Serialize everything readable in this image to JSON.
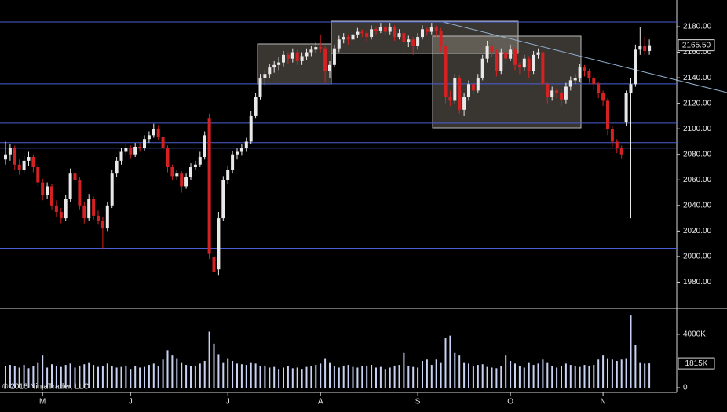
{
  "chart_data": [
    {
      "type": "candlestick",
      "up_color": "#e8e8e8",
      "down_color": "#d42222",
      "level_color": "#4a5fd6",
      "ylim": [
        1960,
        2196
      ],
      "yticks": [
        {
          "value": 1980,
          "label": "1980.00"
        },
        {
          "value": 2000,
          "label": "2000.00"
        },
        {
          "value": 2020,
          "label": "2020.00"
        },
        {
          "value": 2040,
          "label": "2040.00"
        },
        {
          "value": 2060,
          "label": "2060.00"
        },
        {
          "value": 2080,
          "label": "2080.00"
        },
        {
          "value": 2100,
          "label": "2100.00"
        },
        {
          "value": 2120,
          "label": "2120.00"
        },
        {
          "value": 2140,
          "label": "2140.00"
        },
        {
          "value": 2160,
          "label": "2160.00"
        },
        {
          "value": 2180,
          "label": "2180.00"
        }
      ],
      "levels": [
        2183.7,
        2135.2,
        2104.5,
        2089.2,
        2084.9,
        2006.4
      ],
      "last_value": 2165.5,
      "last_value_label": "2165.50",
      "ohlc": [
        [
          2076,
          2090,
          2072,
          2080
        ],
        [
          2080,
          2088,
          2075,
          2085
        ],
        [
          2085,
          2087,
          2068,
          2072
        ],
        [
          2072,
          2076,
          2064,
          2068
        ],
        [
          2068,
          2079,
          2065,
          2075
        ],
        [
          2075,
          2082,
          2071,
          2078
        ],
        [
          2078,
          2080,
          2066,
          2070
        ],
        [
          2070,
          2072,
          2055,
          2058
        ],
        [
          2058,
          2061,
          2044,
          2048
        ],
        [
          2048,
          2058,
          2045,
          2055
        ],
        [
          2055,
          2057,
          2037,
          2040
        ],
        [
          2040,
          2044,
          2031,
          2035
        ],
        [
          2035,
          2038,
          2026,
          2030
        ],
        [
          2030,
          2048,
          2028,
          2045
        ],
        [
          2045,
          2069,
          2043,
          2065
        ],
        [
          2065,
          2068,
          2056,
          2060
        ],
        [
          2060,
          2062,
          2037,
          2040
        ],
        [
          2040,
          2043,
          2026,
          2030
        ],
        [
          2030,
          2049,
          2028,
          2045
        ],
        [
          2045,
          2047,
          2029,
          2032
        ],
        [
          2032,
          2036,
          2025,
          2028
        ],
        [
          2028,
          2031,
          2006,
          2022
        ],
        [
          2022,
          2043,
          2020,
          2040
        ],
        [
          2040,
          2068,
          2038,
          2065
        ],
        [
          2065,
          2078,
          2062,
          2075
        ],
        [
          2075,
          2085,
          2072,
          2082
        ],
        [
          2082,
          2088,
          2079,
          2085
        ],
        [
          2085,
          2087,
          2077,
          2080
        ],
        [
          2080,
          2089,
          2078,
          2086
        ],
        [
          2086,
          2089,
          2082,
          2085
        ],
        [
          2085,
          2095,
          2083,
          2092
        ],
        [
          2092,
          2098,
          2089,
          2095
        ],
        [
          2095,
          2104,
          2093,
          2100
        ],
        [
          2100,
          2103,
          2091,
          2094
        ],
        [
          2094,
          2096,
          2082,
          2085
        ],
        [
          2085,
          2087,
          2066,
          2070
        ],
        [
          2070,
          2072,
          2060,
          2063
        ],
        [
          2063,
          2068,
          2060,
          2065
        ],
        [
          2065,
          2067,
          2050,
          2055
        ],
        [
          2055,
          2065,
          2053,
          2062
        ],
        [
          2062,
          2073,
          2060,
          2070
        ],
        [
          2070,
          2075,
          2068,
          2072
        ],
        [
          2072,
          2082,
          2070,
          2078
        ],
        [
          2078,
          2098,
          2076,
          2095
        ],
        [
          2108,
          2112,
          1998,
          2002
        ],
        [
          2000,
          2010,
          1982,
          1988
        ],
        [
          1990,
          2035,
          1985,
          2030
        ],
        [
          2030,
          2063,
          2028,
          2060
        ],
        [
          2060,
          2071,
          2057,
          2068
        ],
        [
          2068,
          2083,
          2065,
          2080
        ],
        [
          2080,
          2085,
          2076,
          2082
        ],
        [
          2082,
          2088,
          2079,
          2085
        ],
        [
          2085,
          2093,
          2082,
          2090
        ],
        [
          2090,
          2114,
          2088,
          2110
        ],
        [
          2110,
          2128,
          2108,
          2125
        ],
        [
          2125,
          2143,
          2123,
          2140
        ],
        [
          2140,
          2146,
          2134,
          2143
        ],
        [
          2143,
          2151,
          2140,
          2148
        ],
        [
          2148,
          2153,
          2144,
          2150
        ],
        [
          2150,
          2156,
          2146,
          2152
        ],
        [
          2152,
          2161,
          2149,
          2158
        ],
        [
          2158,
          2160,
          2151,
          2155
        ],
        [
          2155,
          2163,
          2152,
          2160
        ],
        [
          2160,
          2162,
          2150,
          2153
        ],
        [
          2153,
          2160,
          2150,
          2157
        ],
        [
          2157,
          2163,
          2154,
          2160
        ],
        [
          2160,
          2165,
          2157,
          2162
        ],
        [
          2162,
          2168,
          2159,
          2164
        ],
        [
          2164,
          2174,
          2160,
          2163
        ],
        [
          2163,
          2165,
          2136,
          2145
        ],
        [
          2145,
          2153,
          2140,
          2150
        ],
        [
          2150,
          2166,
          2148,
          2163
        ],
        [
          2163,
          2173,
          2160,
          2170
        ],
        [
          2170,
          2175,
          2167,
          2172
        ],
        [
          2172,
          2174,
          2166,
          2170
        ],
        [
          2170,
          2177,
          2168,
          2174
        ],
        [
          2174,
          2179,
          2171,
          2176
        ],
        [
          2176,
          2178,
          2172,
          2175
        ],
        [
          2175,
          2177,
          2168,
          2172
        ],
        [
          2172,
          2181,
          2170,
          2178
        ],
        [
          2178,
          2180,
          2174,
          2177
        ],
        [
          2177,
          2183,
          2175,
          2180
        ],
        [
          2180,
          2182,
          2173,
          2176
        ],
        [
          2176,
          2183,
          2174,
          2180
        ],
        [
          2180,
          2181,
          2169,
          2172
        ],
        [
          2172,
          2178,
          2170,
          2175
        ],
        [
          2175,
          2177,
          2160,
          2168
        ],
        [
          2168,
          2173,
          2164,
          2170
        ],
        [
          2170,
          2172,
          2158,
          2165
        ],
        [
          2165,
          2175,
          2162,
          2172
        ],
        [
          2172,
          2181,
          2170,
          2178
        ],
        [
          2178,
          2180,
          2173,
          2176
        ],
        [
          2176,
          2183,
          2174,
          2180
        ],
        [
          2180,
          2181,
          2172,
          2177
        ],
        [
          2177,
          2179,
          2160,
          2165
        ],
        [
          2165,
          2167,
          2120,
          2125
        ],
        [
          2125,
          2130,
          2118,
          2122
        ],
        [
          2122,
          2143,
          2120,
          2140
        ],
        [
          2140,
          2142,
          2112,
          2115
        ],
        [
          2115,
          2128,
          2110,
          2125
        ],
        [
          2125,
          2138,
          2122,
          2135
        ],
        [
          2135,
          2137,
          2127,
          2130
        ],
        [
          2130,
          2143,
          2128,
          2140
        ],
        [
          2140,
          2158,
          2138,
          2155
        ],
        [
          2155,
          2169,
          2152,
          2165
        ],
        [
          2165,
          2167,
          2156,
          2160
        ],
        [
          2160,
          2162,
          2141,
          2145
        ],
        [
          2145,
          2163,
          2143,
          2160
        ],
        [
          2160,
          2162,
          2150,
          2155
        ],
        [
          2155,
          2166,
          2153,
          2162
        ],
        [
          2162,
          2164,
          2146,
          2150
        ],
        [
          2150,
          2152,
          2143,
          2148
        ],
        [
          2148,
          2158,
          2145,
          2155
        ],
        [
          2155,
          2157,
          2140,
          2145
        ],
        [
          2145,
          2161,
          2143,
          2158
        ],
        [
          2158,
          2163,
          2155,
          2160
        ],
        [
          2160,
          2162,
          2130,
          2135
        ],
        [
          2135,
          2137,
          2120,
          2125
        ],
        [
          2125,
          2133,
          2122,
          2130
        ],
        [
          2130,
          2132,
          2124,
          2128
        ],
        [
          2128,
          2130,
          2118,
          2123
        ],
        [
          2123,
          2136,
          2120,
          2133
        ],
        [
          2133,
          2141,
          2130,
          2138
        ],
        [
          2138,
          2143,
          2135,
          2140
        ],
        [
          2140,
          2151,
          2137,
          2148
        ],
        [
          2148,
          2150,
          2141,
          2145
        ],
        [
          2145,
          2147,
          2136,
          2140
        ],
        [
          2140,
          2142,
          2130,
          2135
        ],
        [
          2135,
          2137,
          2124,
          2128
        ],
        [
          2128,
          2130,
          2118,
          2122
        ],
        [
          2122,
          2124,
          2095,
          2100
        ],
        [
          2100,
          2102,
          2086,
          2090
        ],
        [
          2090,
          2092,
          2081,
          2085
        ],
        [
          2085,
          2087,
          2077,
          2080
        ],
        [
          2105,
          2130,
          2102,
          2128
        ],
        [
          2128,
          2140,
          2030,
          2135
        ],
        [
          2135,
          2166,
          2133,
          2162
        ],
        [
          2162,
          2180,
          2158,
          2165
        ],
        [
          2165,
          2172,
          2158,
          2161
        ],
        [
          2161,
          2170,
          2158,
          2165.5
        ]
      ]
    },
    {
      "type": "bar",
      "color": "#c9d2f2",
      "ylim": [
        0,
        5700
      ],
      "yticks": [
        0,
        {
          "value": 4000,
          "label": "4000K"
        }
      ],
      "last_value": 1815,
      "last_value_label": "1815K",
      "copyright": "© 2016 NinjaTrader, LLC",
      "categories": [
        null,
        null,
        null,
        null,
        null,
        null,
        null,
        null,
        "M",
        null,
        null,
        null,
        null,
        null,
        null,
        null,
        null,
        null,
        null,
        null,
        null,
        null,
        null,
        null,
        null,
        null,
        null,
        "J",
        null,
        null,
        null,
        null,
        null,
        null,
        null,
        null,
        null,
        null,
        null,
        null,
        null,
        null,
        null,
        null,
        null,
        null,
        null,
        null,
        "J",
        null,
        null,
        null,
        null,
        null,
        null,
        null,
        null,
        null,
        null,
        null,
        null,
        null,
        null,
        null,
        null,
        null,
        null,
        null,
        "A",
        null,
        null,
        null,
        null,
        null,
        null,
        null,
        null,
        null,
        null,
        null,
        null,
        null,
        null,
        null,
        null,
        null,
        null,
        null,
        null,
        "S",
        null,
        null,
        null,
        null,
        null,
        null,
        null,
        null,
        null,
        null,
        null,
        null,
        null,
        null,
        null,
        null,
        null,
        null,
        null,
        "O",
        null,
        null,
        null,
        null,
        null,
        null,
        null,
        null,
        null,
        null,
        null,
        null,
        null,
        null,
        null,
        null,
        null,
        null,
        null,
        "N",
        null,
        null,
        null,
        null,
        null,
        null,
        null,
        null,
        null,
        null
      ],
      "values": [
        1600,
        1700,
        1600,
        1500,
        1700,
        1450,
        1600,
        1900,
        2400,
        1500,
        1750,
        1600,
        1550,
        1700,
        1800,
        1500,
        1650,
        1750,
        1900,
        1700,
        1550,
        1600,
        1800,
        1600,
        1500,
        1550,
        1650,
        1400,
        1600,
        1500,
        1550,
        1700,
        1800,
        1600,
        2100,
        2800,
        2400,
        2200,
        1900,
        1700,
        1600,
        1650,
        1800,
        2000,
        4200,
        3300,
        2500,
        1900,
        2200,
        2000,
        1800,
        1750,
        1700,
        1900,
        1800,
        1600,
        1650,
        1500,
        1550,
        1400,
        1500,
        1600,
        1450,
        1500,
        1400,
        1550,
        1600,
        1700,
        1800,
        2200,
        1900,
        1600,
        1500,
        1650,
        1700,
        1550,
        1500,
        1600,
        1650,
        1700,
        1500,
        1550,
        1400,
        1500,
        1650,
        1700,
        2600,
        1600,
        1550,
        1500,
        2000,
        2100,
        1700,
        2100,
        1900,
        3700,
        3900,
        2600,
        2400,
        1900,
        1800,
        1600,
        1700,
        1750,
        1550,
        1500,
        1450,
        1600,
        2400,
        2000,
        1800,
        1600,
        1500,
        1900,
        1700,
        1800,
        2100,
        1900,
        1600,
        1500,
        1650,
        1800,
        1700,
        1600,
        1550,
        1700,
        1650,
        1700,
        2100,
        2400,
        2200,
        2100,
        2000,
        2100,
        2200,
        5400,
        3200,
        1900,
        1800,
        1815
      ]
    }
  ]
}
